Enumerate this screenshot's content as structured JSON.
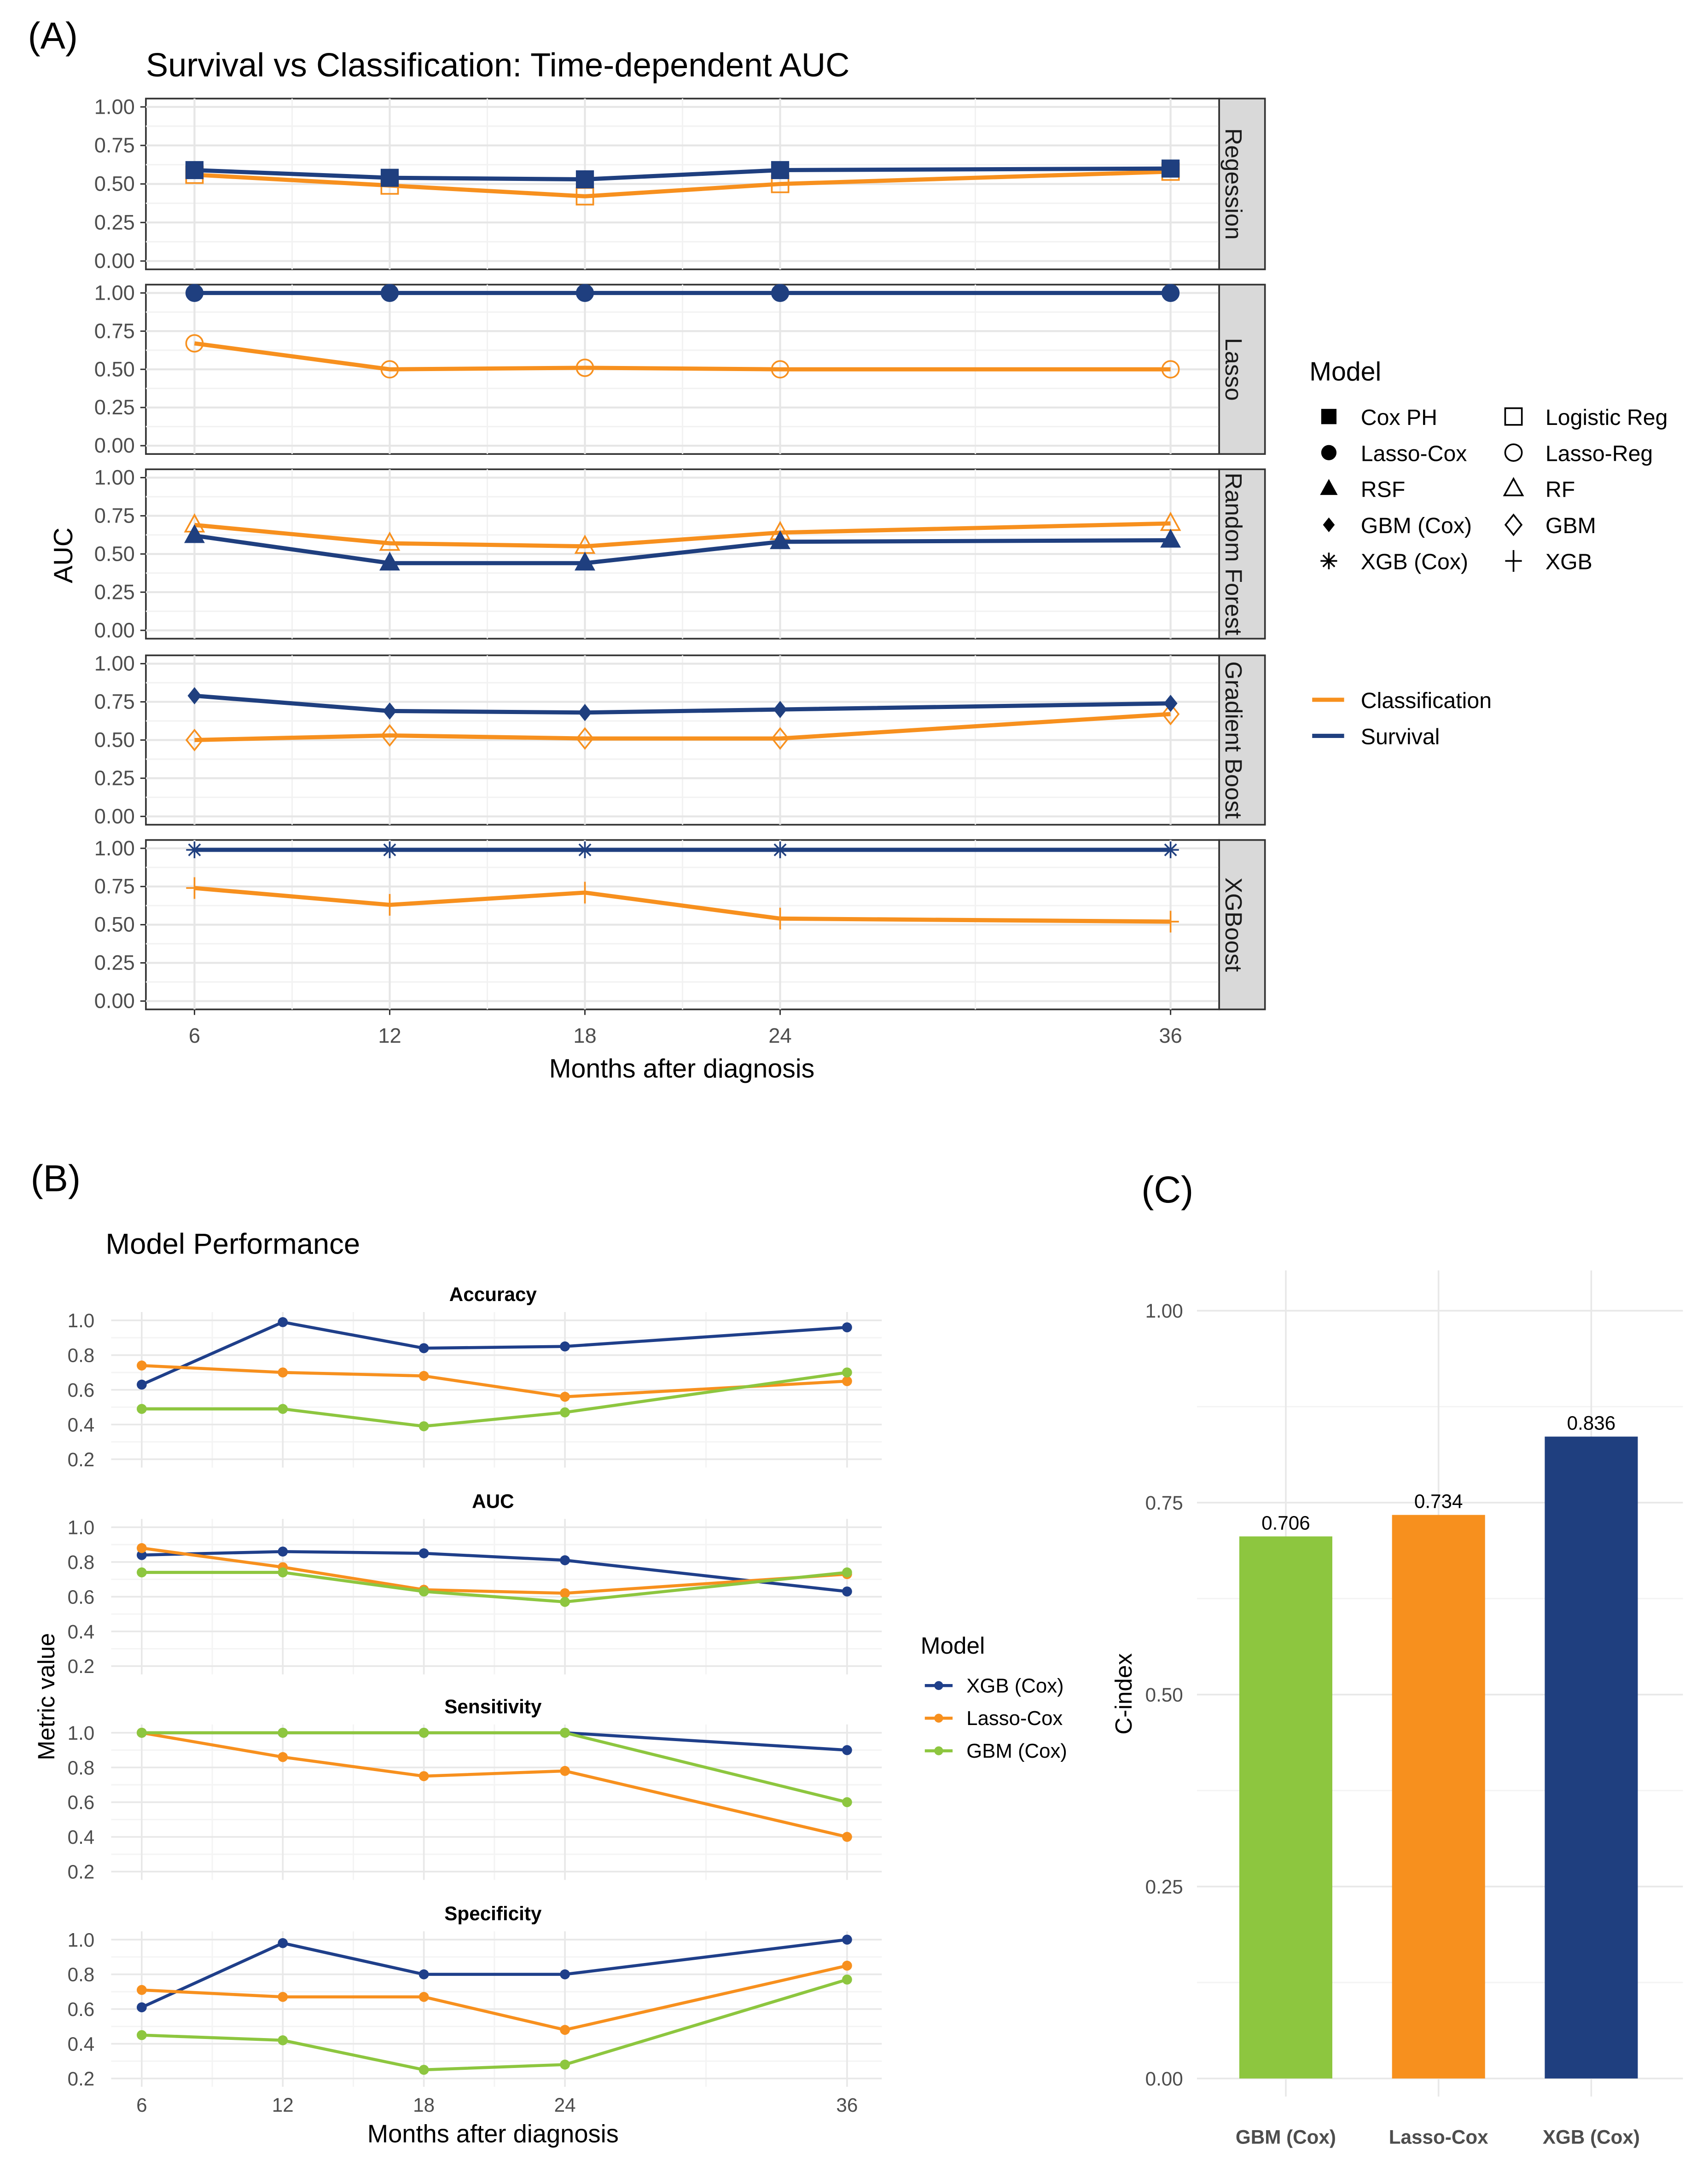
{
  "chart_data": [
    {
      "panel_label": "(A)",
      "type": "line",
      "title": "Survival vs Classification: Time-dependent AUC",
      "xlabel": "Months after diagnosis",
      "ylabel": "AUC",
      "x": [
        6,
        12,
        18,
        24,
        36
      ],
      "xticks": [
        "6",
        "12",
        "18",
        "24",
        "36"
      ],
      "ylim": [
        0,
        1
      ],
      "yticks": [
        "0.00",
        "0.25",
        "0.50",
        "0.75",
        "1.00"
      ],
      "grid": true,
      "colors": {
        "Classification": "#f7901e",
        "Survival": "#1f3f7f"
      },
      "facets": [
        {
          "label": "Regession",
          "series": [
            {
              "model": "Cox PH",
              "group": "Survival",
              "shape": "square-filled",
              "values": [
                0.59,
                0.54,
                0.53,
                0.59,
                0.6
              ]
            },
            {
              "model": "Logistic Reg",
              "group": "Classification",
              "shape": "square-open",
              "values": [
                0.56,
                0.49,
                0.42,
                0.5,
                0.58
              ]
            }
          ]
        },
        {
          "label": "Lasso",
          "series": [
            {
              "model": "Lasso-Cox",
              "group": "Survival",
              "shape": "circle-filled",
              "values": [
                1.0,
                1.0,
                1.0,
                1.0,
                1.0
              ]
            },
            {
              "model": "Lasso-Reg",
              "group": "Classification",
              "shape": "circle-open",
              "values": [
                0.67,
                0.5,
                0.51,
                0.5,
                0.5
              ]
            }
          ]
        },
        {
          "label": "Random Forest",
          "series": [
            {
              "model": "RSF",
              "group": "Survival",
              "shape": "triangle-filled",
              "values": [
                0.62,
                0.44,
                0.44,
                0.58,
                0.59
              ]
            },
            {
              "model": "RF",
              "group": "Classification",
              "shape": "triangle-open",
              "values": [
                0.69,
                0.57,
                0.55,
                0.64,
                0.7
              ]
            }
          ]
        },
        {
          "label": "Gradient Boost",
          "series": [
            {
              "model": "GBM (Cox)",
              "group": "Survival",
              "shape": "diamond-filled",
              "values": [
                0.79,
                0.69,
                0.68,
                0.7,
                0.74
              ]
            },
            {
              "model": "GBM",
              "group": "Classification",
              "shape": "diamond-open",
              "values": [
                0.5,
                0.53,
                0.51,
                0.51,
                0.67
              ]
            }
          ]
        },
        {
          "label": "XGBoost",
          "series": [
            {
              "model": "XGB (Cox)",
              "group": "Survival",
              "shape": "asterisk",
              "values": [
                0.99,
                0.99,
                0.99,
                0.99,
                0.99
              ]
            },
            {
              "model": "XGB",
              "group": "Classification",
              "shape": "plus",
              "values": [
                0.74,
                0.63,
                0.71,
                0.54,
                0.52
              ]
            }
          ]
        }
      ],
      "legend": {
        "shape_title": "Model",
        "shape_entries": [
          {
            "name": "Cox PH",
            "shape": "square-filled"
          },
          {
            "name": "Logistic Reg",
            "shape": "square-open"
          },
          {
            "name": "Lasso-Cox",
            "shape": "circle-filled"
          },
          {
            "name": "Lasso-Reg",
            "shape": "circle-open"
          },
          {
            "name": "RSF",
            "shape": "triangle-filled"
          },
          {
            "name": "RF",
            "shape": "triangle-open"
          },
          {
            "name": "GBM (Cox)",
            "shape": "diamond-filled"
          },
          {
            "name": "GBM",
            "shape": "diamond-open"
          },
          {
            "name": "XGB (Cox)",
            "shape": "asterisk"
          },
          {
            "name": "XGB",
            "shape": "plus"
          }
        ],
        "color_entries": [
          {
            "name": "Classification",
            "color": "#f7901e"
          },
          {
            "name": "Survival",
            "color": "#1f3f7f"
          }
        ],
        "placement": "right"
      }
    },
    {
      "panel_label": "(B)",
      "type": "line",
      "title": "Model Performance",
      "xlabel": "Months after diagnosis",
      "ylabel": "Metric value",
      "x": [
        6,
        12,
        18,
        24,
        36
      ],
      "xticks": [
        "6",
        "12",
        "18",
        "24",
        "36"
      ],
      "ylim": [
        0.2,
        1.0
      ],
      "yticks": [
        "0.2",
        "0.4",
        "0.6",
        "0.8",
        "1.0"
      ],
      "grid": true,
      "legend_title": "Model",
      "legend_placement": "right",
      "series_styles": [
        {
          "name": "XGB (Cox)",
          "color": "#1f3f8a"
        },
        {
          "name": "Lasso-Cox",
          "color": "#f7901e"
        },
        {
          "name": "GBM (Cox)",
          "color": "#8dc63f"
        }
      ],
      "facets": [
        {
          "title": "Accuracy",
          "series": [
            {
              "name": "XGB (Cox)",
              "values": [
                0.63,
                0.99,
                0.84,
                0.85,
                0.96
              ]
            },
            {
              "name": "Lasso-Cox",
              "values": [
                0.74,
                0.7,
                0.68,
                0.56,
                0.65
              ]
            },
            {
              "name": "GBM (Cox)",
              "values": [
                0.49,
                0.49,
                0.39,
                0.47,
                0.7
              ]
            }
          ]
        },
        {
          "title": "AUC",
          "series": [
            {
              "name": "XGB (Cox)",
              "values": [
                0.84,
                0.86,
                0.85,
                0.81,
                0.63
              ]
            },
            {
              "name": "Lasso-Cox",
              "values": [
                0.88,
                0.77,
                0.64,
                0.62,
                0.73
              ]
            },
            {
              "name": "GBM (Cox)",
              "values": [
                0.74,
                0.74,
                0.63,
                0.57,
                0.74
              ]
            }
          ]
        },
        {
          "title": "Sensitivity",
          "series": [
            {
              "name": "XGB (Cox)",
              "values": [
                1.0,
                1.0,
                1.0,
                1.0,
                0.9
              ]
            },
            {
              "name": "Lasso-Cox",
              "values": [
                1.0,
                0.86,
                0.75,
                0.78,
                0.4
              ]
            },
            {
              "name": "GBM (Cox)",
              "values": [
                1.0,
                1.0,
                1.0,
                1.0,
                0.6
              ]
            }
          ]
        },
        {
          "title": "Specificity",
          "series": [
            {
              "name": "XGB (Cox)",
              "values": [
                0.61,
                0.98,
                0.8,
                0.8,
                1.0
              ]
            },
            {
              "name": "Lasso-Cox",
              "values": [
                0.71,
                0.67,
                0.67,
                0.48,
                0.85
              ]
            },
            {
              "name": "GBM (Cox)",
              "values": [
                0.45,
                0.42,
                0.25,
                0.28,
                0.77
              ]
            }
          ]
        }
      ]
    },
    {
      "panel_label": "(C)",
      "type": "bar",
      "categories": [
        "GBM (Cox)",
        "Lasso-Cox",
        "XGB (Cox)"
      ],
      "values": [
        0.706,
        0.734,
        0.836
      ],
      "data_labels": [
        "0.706",
        "0.734",
        "0.836"
      ],
      "colors": [
        "#8dc63f",
        "#f7901e",
        "#1f3f7f"
      ],
      "xlabel": "",
      "ylabel": "C-index",
      "ylim": [
        0,
        1
      ],
      "yticks": [
        "0.00",
        "0.25",
        "0.50",
        "0.75",
        "1.00"
      ],
      "grid": true
    }
  ]
}
